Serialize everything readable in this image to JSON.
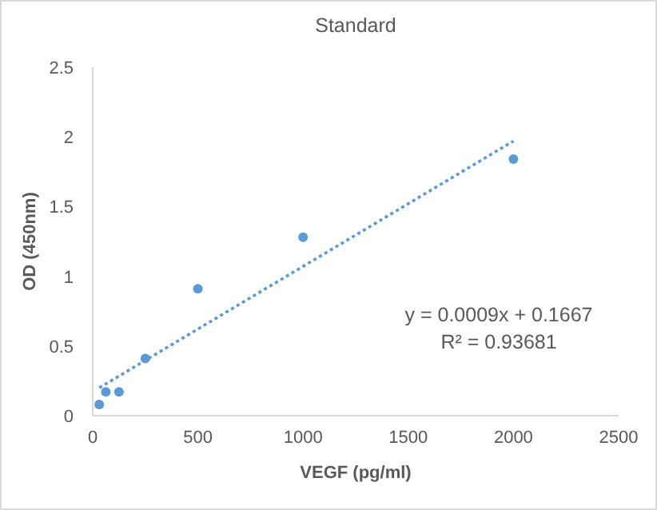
{
  "chart_data": {
    "type": "scatter",
    "title": "Standard",
    "xlabel": "VEGF (pg/ml)",
    "ylabel": "OD (450nm)",
    "x": [
      31.25,
      62.5,
      125,
      250,
      500,
      1000,
      2000
    ],
    "series": [
      {
        "color": "#5b9bd5",
        "values": [
          0.08,
          0.17,
          0.17,
          0.41,
          0.91,
          1.28,
          1.84
        ],
        "marker": "circle"
      },
      {
        "type": "line",
        "color": "#5b9bd5",
        "x": [
          31.25,
          2000
        ],
        "values": [
          0.2,
          1.97
        ],
        "line_style": "dotted"
      }
    ],
    "xlim": [
      0,
      2500
    ],
    "xticks": [
      0,
      500,
      1000,
      1500,
      2000,
      2500
    ],
    "ylim": [
      0,
      2.5
    ],
    "yticks": [
      0,
      0.5,
      1,
      1.5,
      2,
      2.5
    ],
    "grid": false,
    "annotations": [
      "y = 0.0009x + 0.1667",
      "R² = 0.93681"
    ]
  }
}
